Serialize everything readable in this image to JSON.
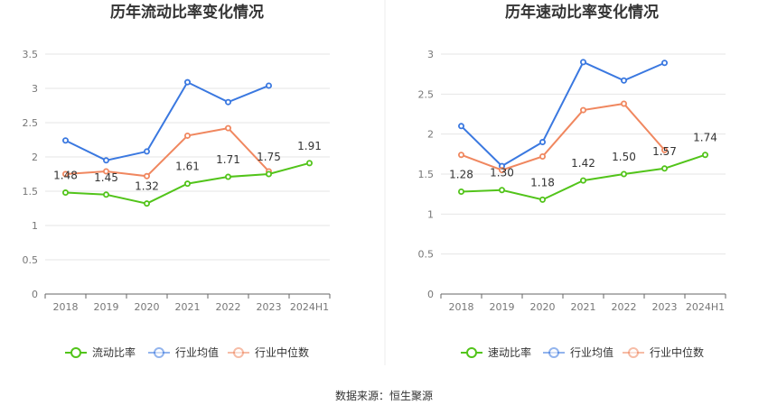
{
  "footer": {
    "prefix": "数据来源：",
    "source": "恒生聚源"
  },
  "colors": {
    "primary": "#52c41a",
    "mean": "#3a78e0",
    "median": "#f0875f"
  },
  "chart_data": [
    {
      "type": "line",
      "title": "历年流动比率变化情况",
      "categories": [
        "2018",
        "2019",
        "2020",
        "2021",
        "2022",
        "2023",
        "2024H1"
      ],
      "ylim": [
        0,
        3.5
      ],
      "yticks": [
        "0",
        "0.5",
        "1",
        "1.5",
        "2",
        "2.5",
        "3",
        "3.5"
      ],
      "grid": true,
      "legend_position": "bottom",
      "series": [
        {
          "name": "流动比率",
          "key": "primary",
          "values": [
            1.48,
            1.45,
            1.32,
            1.61,
            1.71,
            1.75,
            1.91
          ],
          "labels": [
            "1.48",
            "1.45",
            "1.32",
            "1.61",
            "1.71",
            "1.75",
            "1.91"
          ]
        },
        {
          "name": "行业均值",
          "key": "mean",
          "values": [
            2.24,
            1.95,
            2.08,
            3.09,
            2.8,
            3.04,
            null
          ]
        },
        {
          "name": "行业中位数",
          "key": "median",
          "values": [
            1.75,
            1.79,
            1.72,
            2.31,
            2.42,
            1.79,
            null
          ]
        }
      ]
    },
    {
      "type": "line",
      "title": "历年速动比率变化情况",
      "categories": [
        "2018",
        "2019",
        "2020",
        "2021",
        "2022",
        "2023",
        "2024H1"
      ],
      "ylim": [
        0,
        3
      ],
      "yticks": [
        "0",
        "0.5",
        "1",
        "1.5",
        "2",
        "2.5",
        "3"
      ],
      "grid": true,
      "legend_position": "bottom",
      "series": [
        {
          "name": "速动比率",
          "key": "primary",
          "values": [
            1.28,
            1.3,
            1.18,
            1.42,
            1.5,
            1.57,
            1.74
          ],
          "labels": [
            "1.28",
            "1.30",
            "1.18",
            "1.42",
            "1.50",
            "1.57",
            "1.74"
          ]
        },
        {
          "name": "行业均值",
          "key": "mean",
          "values": [
            2.1,
            1.6,
            1.9,
            2.9,
            2.67,
            2.89,
            null
          ]
        },
        {
          "name": "行业中位数",
          "key": "median",
          "values": [
            1.74,
            1.55,
            1.72,
            2.3,
            2.38,
            1.8,
            null
          ]
        }
      ]
    }
  ]
}
